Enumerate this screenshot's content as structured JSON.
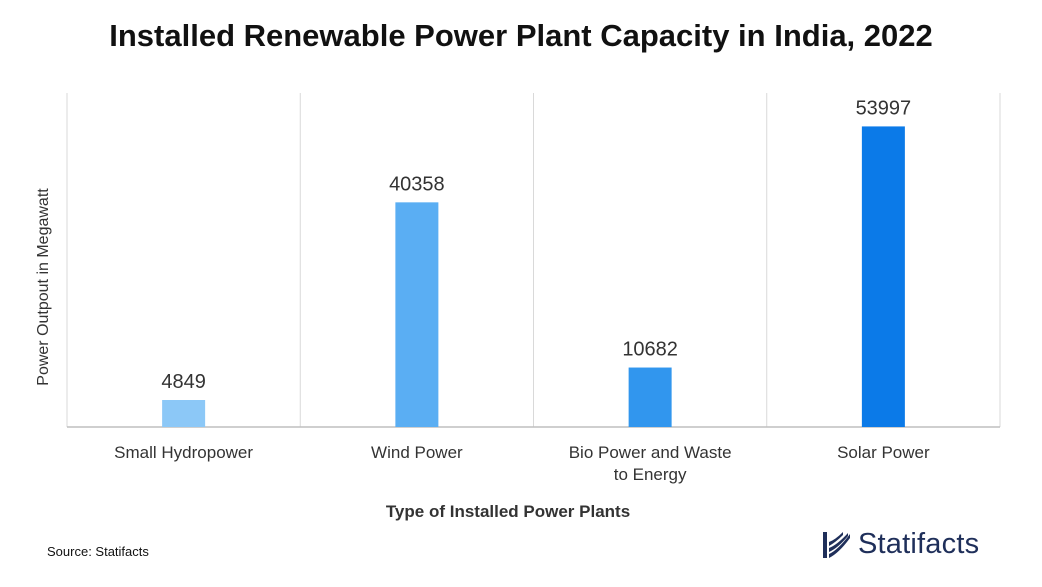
{
  "chart_data": {
    "type": "bar",
    "title": "Installed Renewable Power Plant Capacity in India, 2022",
    "xlabel": "Type of Installed Power Plants",
    "ylabel": "Power Outpout in Megawatt",
    "categories": [
      [
        "Small Hydropower"
      ],
      [
        "Wind Power"
      ],
      [
        "Bio Power and Waste",
        "to Energy"
      ],
      [
        "Solar Power"
      ]
    ],
    "values": [
      4849,
      40358,
      10682,
      53997
    ],
    "value_labels": [
      "4849",
      "40358",
      "10682",
      "53997"
    ],
    "bar_colors": [
      "#8cc8f7",
      "#5aaef3",
      "#3196ee",
      "#0b7ae8"
    ],
    "ylim": [
      0,
      60000
    ],
    "grid": "vertical",
    "legend": "none"
  },
  "footer": {
    "source": "Source: Statifacts",
    "brand": "Statifacts"
  },
  "colors": {
    "grid": "#d9d9d9",
    "axis": "#bfbfbf",
    "brand": "#1f2f5a"
  }
}
